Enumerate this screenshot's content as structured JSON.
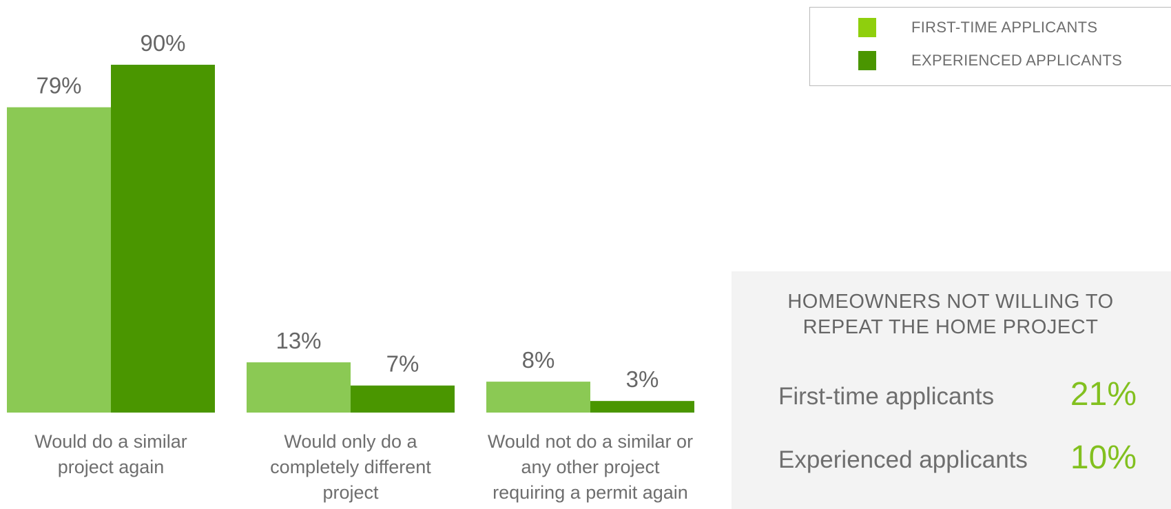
{
  "colors": {
    "first_time": "#8bc954",
    "experienced": "#4a9600",
    "legend_first_time": "#8fcf0d",
    "legend_experienced": "#4a9600",
    "panel_value": "#82c01f"
  },
  "legend": {
    "items": [
      {
        "label": "FIRST-TIME APPLICANTS"
      },
      {
        "label": "EXPERIENCED APPLICANTS"
      }
    ]
  },
  "panel": {
    "title_line1": "HOMEOWNERS NOT WILLING TO",
    "title_line2": "REPEAT THE HOME PROJECT",
    "rows": [
      {
        "label": "First-time applicants",
        "value": "21%"
      },
      {
        "label": "Experienced applicants",
        "value": "10%"
      }
    ]
  },
  "chart_data": {
    "type": "bar",
    "categories": [
      [
        "Would do a similar",
        "project again"
      ],
      [
        "Would only do a",
        "completely different",
        "project"
      ],
      [
        "Would not do a similar or",
        "any other project",
        "requiring a permit again"
      ]
    ],
    "series": [
      {
        "name": "FIRST-TIME APPLICANTS",
        "values": [
          79,
          13,
          8
        ]
      },
      {
        "name": "EXPERIENCED APPLICANTS",
        "values": [
          90,
          7,
          3
        ]
      }
    ],
    "value_suffix": "%",
    "ylim": [
      0,
      90
    ],
    "grid": false,
    "legend_position": "top-right"
  }
}
